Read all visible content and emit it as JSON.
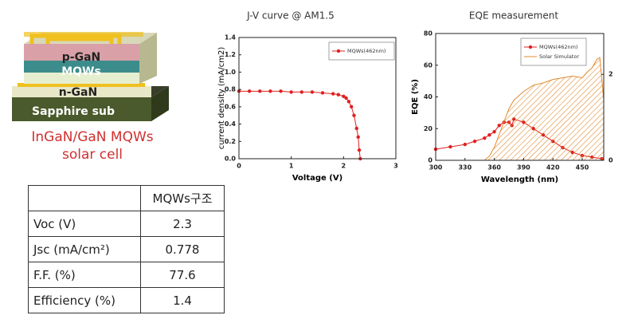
{
  "diagram": {
    "layers": [
      "p-GaN",
      "MQWs",
      "n-GaN",
      "Sapphire sub"
    ],
    "caption": [
      "InGaN/GaN MQWs",
      "solar cell"
    ]
  },
  "table": {
    "header": [
      "",
      "MQWs구조"
    ],
    "rows": [
      [
        "Voc (V)",
        "2.3"
      ],
      [
        "Jsc (mA/cm²)",
        "0.778"
      ],
      [
        "F.F. (%)",
        "77.6"
      ],
      [
        "Efficiency (%)",
        "1.4"
      ]
    ]
  },
  "chart_data": [
    {
      "type": "line",
      "title": "J-V curve @ AM1.5",
      "xlabel": "Voltage (V)",
      "ylabel": "current density (mA/cm2)",
      "xlim": [
        0,
        3
      ],
      "xticks": [
        0,
        1,
        2,
        3
      ],
      "ylim": [
        0,
        1.4
      ],
      "yticks": [
        {
          "value": 0,
          "label": "0.0"
        },
        {
          "value": 0.2,
          "label": "0.2"
        },
        {
          "value": 0.4,
          "label": "0.4"
        },
        {
          "value": 0.6,
          "label": "0.6"
        },
        {
          "value": 0.8,
          "label": "0.8"
        },
        {
          "value": 1,
          "label": "1.0"
        },
        {
          "value": 1.2,
          "label": "1.2"
        },
        {
          "value": 1.4,
          "label": "1.4"
        }
      ],
      "legend": "top right",
      "series": [
        {
          "name": "MQWs(462nm)",
          "color": "#e02020",
          "x": [
            0,
            0.2,
            0.4,
            0.6,
            0.8,
            1.0,
            1.2,
            1.4,
            1.6,
            1.8,
            1.9,
            2.0,
            2.05,
            2.1,
            2.15,
            2.2,
            2.25,
            2.28,
            2.3,
            2.32
          ],
          "values": [
            0.78,
            0.78,
            0.78,
            0.78,
            0.78,
            0.77,
            0.77,
            0.77,
            0.76,
            0.75,
            0.74,
            0.72,
            0.7,
            0.66,
            0.6,
            0.5,
            0.35,
            0.25,
            0.1,
            0.0
          ]
        }
      ]
    },
    {
      "type": "line",
      "title": "EQE measurement",
      "xlabel": "Wavelength (nm)",
      "ylabel": "EQE (%)",
      "xlim": [
        300,
        472
      ],
      "xticks": [
        300,
        330,
        360,
        390,
        420,
        450
      ],
      "ylim": [
        0,
        80
      ],
      "yticks": [
        0,
        20,
        40,
        60,
        80
      ],
      "y2lim": [
        0,
        2.95
      ],
      "y2ticks": [
        0,
        2
      ],
      "legend": "top right",
      "series": [
        {
          "name": "MQWs(462nm)",
          "color": "#e02020",
          "x": [
            300,
            315,
            330,
            340,
            350,
            355,
            360,
            365,
            370,
            375,
            378,
            380,
            390,
            400,
            410,
            420,
            430,
            440,
            450,
            460,
            470
          ],
          "values": [
            7,
            8.5,
            10,
            12,
            14,
            16,
            18,
            22,
            24,
            24,
            22,
            26,
            24,
            20,
            16,
            12,
            8,
            5,
            3,
            2,
            1
          ]
        },
        {
          "name": "Solar Simulator",
          "color": "#e08a2c",
          "axis": "y2",
          "area": true,
          "x": [
            350,
            355,
            360,
            365,
            370,
            375,
            380,
            390,
            400,
            410,
            420,
            430,
            440,
            450,
            455,
            460,
            465,
            468,
            470,
            472
          ],
          "values": [
            0,
            0.1,
            0.3,
            0.6,
            0.9,
            1.2,
            1.4,
            1.6,
            1.75,
            1.8,
            1.88,
            1.92,
            1.96,
            1.92,
            2.05,
            2.15,
            2.35,
            2.39,
            1.9,
            1.4
          ]
        }
      ]
    }
  ]
}
